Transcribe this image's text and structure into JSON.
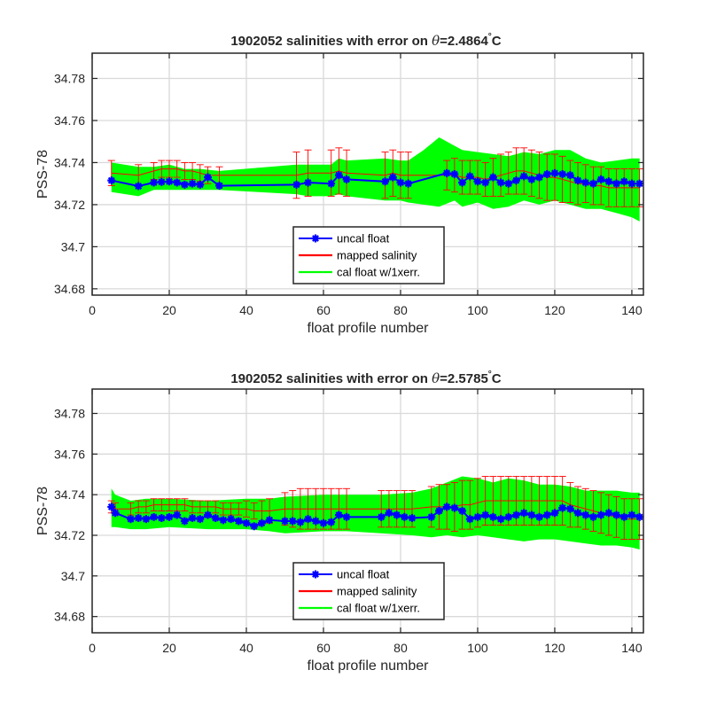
{
  "chart_data": [
    {
      "type": "line",
      "title": "1902052 salinities with error on",
      "title_symbol": "θ",
      "title_value": "=2.4864",
      "title_unit_deg": "°",
      "title_unit": "C",
      "xlabel": "float profile number",
      "ylabel": "PSS-78",
      "xlim": [
        0,
        143
      ],
      "ylim": [
        34.677,
        34.792
      ],
      "xticks": [
        0,
        20,
        40,
        60,
        80,
        100,
        120,
        140
      ],
      "yticks": [
        34.68,
        34.7,
        34.72,
        34.74,
        34.76,
        34.78
      ],
      "ytick_labels": [
        "34.68",
        "34.7",
        "34.72",
        "34.74",
        "34.76",
        "34.78"
      ],
      "grid": true,
      "legend_position": "bottom-center",
      "series": [
        {
          "name": "uncal float",
          "color": "#0000ff",
          "x": [
            5,
            12,
            16,
            18,
            20,
            22,
            24,
            26,
            28,
            30,
            33,
            53,
            56,
            62,
            64,
            66,
            76,
            78,
            80,
            82,
            92,
            94,
            96,
            98,
            100,
            102,
            104,
            106,
            108,
            110,
            112,
            114,
            116,
            118,
            120,
            122,
            124,
            126,
            128,
            130,
            132,
            134,
            136,
            138,
            140,
            142
          ],
          "y": [
            34.7315,
            34.7288,
            34.7305,
            34.7308,
            34.731,
            34.7305,
            34.7295,
            34.73,
            34.7295,
            34.733,
            34.729,
            34.7295,
            34.7305,
            34.73,
            34.734,
            34.732,
            34.731,
            34.733,
            34.7305,
            34.73,
            34.735,
            34.7345,
            34.7305,
            34.7335,
            34.731,
            34.7305,
            34.733,
            34.7305,
            34.73,
            34.7315,
            34.7335,
            34.732,
            34.733,
            34.7345,
            34.735,
            34.7345,
            34.734,
            34.7315,
            34.7305,
            34.73,
            34.732,
            34.731,
            34.73,
            34.731,
            34.73,
            34.73
          ]
        },
        {
          "name": "mapped salinity",
          "color": "#ff0000",
          "x": [
            5,
            12,
            16,
            18,
            20,
            22,
            24,
            26,
            28,
            30,
            33,
            53,
            56,
            62,
            64,
            66,
            76,
            78,
            80,
            82,
            92,
            94,
            96,
            98,
            100,
            102,
            104,
            106,
            108,
            110,
            112,
            114,
            116,
            118,
            120,
            122,
            124,
            126,
            128,
            130,
            132,
            134,
            136,
            138,
            140,
            142
          ],
          "y": [
            34.735,
            34.734,
            34.736,
            34.737,
            34.737,
            34.737,
            34.736,
            34.736,
            34.735,
            34.734,
            34.734,
            34.734,
            34.735,
            34.735,
            34.736,
            34.735,
            34.734,
            34.735,
            34.734,
            34.734,
            34.734,
            34.734,
            34.733,
            34.733,
            34.733,
            34.732,
            34.733,
            34.734,
            34.735,
            34.736,
            34.736,
            34.735,
            34.734,
            34.733,
            34.733,
            34.732,
            34.731,
            34.73,
            34.73,
            34.729,
            34.729,
            34.728,
            34.728,
            34.728,
            34.728,
            34.728
          ],
          "err": [
            0.006,
            0.005,
            0.004,
            0.004,
            0.004,
            0.004,
            0.004,
            0.004,
            0.004,
            0.004,
            0.004,
            0.011,
            0.011,
            0.011,
            0.011,
            0.011,
            0.011,
            0.011,
            0.011,
            0.011,
            0.007,
            0.008,
            0.008,
            0.008,
            0.008,
            0.008,
            0.009,
            0.01,
            0.01,
            0.011,
            0.011,
            0.011,
            0.011,
            0.011,
            0.011,
            0.011,
            0.01,
            0.01,
            0.009,
            0.009,
            0.009,
            0.009,
            0.009,
            0.009,
            0.009,
            0.009
          ]
        },
        {
          "name": "cal float w/1xerr.",
          "color": "#00ff00",
          "x": [
            5,
            12,
            16,
            20,
            24,
            28,
            33,
            53,
            56,
            62,
            64,
            66,
            76,
            80,
            82,
            86,
            90,
            94,
            96,
            100,
            104,
            108,
            112,
            116,
            120,
            124,
            128,
            132,
            136,
            140,
            142
          ],
          "upper": [
            34.74,
            34.738,
            34.738,
            34.739,
            34.737,
            34.737,
            34.736,
            34.739,
            34.739,
            34.739,
            34.742,
            34.741,
            34.742,
            34.741,
            34.741,
            34.746,
            34.752,
            34.748,
            34.746,
            34.745,
            34.744,
            34.743,
            34.745,
            34.744,
            34.746,
            34.746,
            34.742,
            34.74,
            34.741,
            34.742,
            34.742
          ],
          "lower": [
            34.726,
            34.724,
            34.727,
            34.727,
            34.727,
            34.727,
            34.727,
            34.725,
            34.724,
            34.724,
            34.725,
            34.724,
            34.722,
            34.722,
            34.721,
            34.72,
            34.719,
            34.722,
            34.719,
            34.721,
            34.718,
            34.719,
            34.722,
            34.72,
            34.722,
            34.72,
            34.718,
            34.718,
            34.716,
            34.714,
            34.712
          ]
        }
      ]
    },
    {
      "type": "line",
      "title": "1902052 salinities with error on",
      "title_symbol": "θ",
      "title_value": "=2.5785",
      "title_unit_deg": "°",
      "title_unit": "C",
      "xlabel": "float profile number",
      "ylabel": "PSS-78",
      "xlim": [
        0,
        143
      ],
      "ylim": [
        34.672,
        34.792
      ],
      "xticks": [
        0,
        20,
        40,
        60,
        80,
        100,
        120,
        140
      ],
      "yticks": [
        34.68,
        34.7,
        34.72,
        34.74,
        34.76,
        34.78
      ],
      "ytick_labels": [
        "34.68",
        "34.7",
        "34.72",
        "34.74",
        "34.76",
        "34.78"
      ],
      "grid": true,
      "legend_position": "bottom-center",
      "series": [
        {
          "name": "uncal float",
          "color": "#0000ff",
          "x": [
            5,
            6,
            10,
            12,
            14,
            16,
            18,
            20,
            22,
            24,
            26,
            28,
            30,
            32,
            34,
            36,
            38,
            40,
            42,
            44,
            46,
            50,
            52,
            54,
            56,
            58,
            60,
            62,
            64,
            66,
            75,
            77,
            79,
            81,
            83,
            88,
            90,
            92,
            94,
            96,
            98,
            100,
            102,
            104,
            106,
            108,
            110,
            112,
            114,
            116,
            118,
            120,
            122,
            124,
            126,
            128,
            130,
            132,
            134,
            136,
            138,
            140,
            142
          ],
          "y": [
            34.734,
            34.731,
            34.728,
            34.7285,
            34.728,
            34.729,
            34.7285,
            34.729,
            34.73,
            34.727,
            34.7285,
            34.728,
            34.73,
            34.7285,
            34.7275,
            34.728,
            34.727,
            34.726,
            34.7245,
            34.726,
            34.7275,
            34.727,
            34.727,
            34.7265,
            34.728,
            34.727,
            34.726,
            34.7265,
            34.73,
            34.729,
            34.729,
            34.731,
            34.73,
            34.729,
            34.7285,
            34.729,
            34.732,
            34.734,
            34.7335,
            34.732,
            34.728,
            34.729,
            34.73,
            34.729,
            34.728,
            34.729,
            34.73,
            34.731,
            34.73,
            34.729,
            34.73,
            34.731,
            34.7335,
            34.733,
            34.731,
            34.73,
            34.729,
            34.73,
            34.731,
            34.73,
            34.729,
            34.73,
            34.729
          ]
        },
        {
          "name": "mapped salinity",
          "color": "#ff0000",
          "x": [
            5,
            6,
            10,
            12,
            14,
            16,
            18,
            20,
            22,
            24,
            26,
            28,
            30,
            32,
            34,
            36,
            38,
            40,
            42,
            44,
            46,
            50,
            52,
            54,
            56,
            58,
            60,
            62,
            64,
            66,
            75,
            77,
            79,
            81,
            83,
            88,
            90,
            92,
            94,
            96,
            98,
            100,
            102,
            104,
            106,
            108,
            110,
            112,
            114,
            116,
            118,
            120,
            122,
            124,
            126,
            128,
            130,
            132,
            134,
            136,
            138,
            140,
            142
          ],
          "y": [
            34.734,
            34.733,
            34.733,
            34.734,
            34.734,
            34.735,
            34.735,
            34.735,
            34.735,
            34.735,
            34.734,
            34.734,
            34.734,
            34.734,
            34.733,
            34.733,
            34.733,
            34.733,
            34.732,
            34.732,
            34.732,
            34.733,
            34.733,
            34.733,
            34.733,
            34.733,
            34.733,
            34.733,
            34.733,
            34.733,
            34.733,
            34.733,
            34.733,
            34.733,
            34.733,
            34.734,
            34.734,
            34.734,
            34.734,
            34.735,
            34.735,
            34.736,
            34.737,
            34.737,
            34.737,
            34.737,
            34.737,
            34.737,
            34.737,
            34.737,
            34.737,
            34.737,
            34.737,
            34.735,
            34.734,
            34.733,
            34.732,
            34.731,
            34.73,
            34.729,
            34.728,
            34.728,
            34.728
          ],
          "err": [
            0.003,
            0.003,
            0.003,
            0.003,
            0.003,
            0.003,
            0.003,
            0.003,
            0.003,
            0.003,
            0.003,
            0.003,
            0.003,
            0.003,
            0.003,
            0.003,
            0.003,
            0.004,
            0.004,
            0.005,
            0.006,
            0.008,
            0.009,
            0.01,
            0.01,
            0.01,
            0.01,
            0.01,
            0.01,
            0.01,
            0.009,
            0.009,
            0.009,
            0.009,
            0.009,
            0.01,
            0.011,
            0.011,
            0.012,
            0.012,
            0.012,
            0.012,
            0.012,
            0.012,
            0.012,
            0.012,
            0.012,
            0.012,
            0.012,
            0.012,
            0.012,
            0.012,
            0.012,
            0.011,
            0.01,
            0.01,
            0.01,
            0.01,
            0.01,
            0.01,
            0.01,
            0.01,
            0.01
          ]
        },
        {
          "name": "cal float w/1xerr.",
          "color": "#00ff00",
          "x": [
            5,
            6,
            10,
            14,
            20,
            30,
            40,
            46,
            50,
            60,
            66,
            75,
            83,
            88,
            92,
            96,
            100,
            104,
            108,
            112,
            116,
            120,
            124,
            128,
            132,
            136,
            140,
            142
          ],
          "upper": [
            34.743,
            34.74,
            34.737,
            34.738,
            34.738,
            34.737,
            34.738,
            34.738,
            34.739,
            34.74,
            34.74,
            34.74,
            34.741,
            34.743,
            34.746,
            34.749,
            34.748,
            34.746,
            34.748,
            34.747,
            34.745,
            34.745,
            34.744,
            34.742,
            34.742,
            34.742,
            34.741,
            34.741
          ],
          "lower": [
            34.724,
            34.724,
            34.723,
            34.723,
            34.724,
            34.723,
            34.723,
            34.722,
            34.721,
            34.722,
            34.722,
            34.721,
            34.72,
            34.719,
            34.72,
            34.719,
            34.72,
            34.719,
            34.718,
            34.717,
            34.718,
            34.718,
            34.717,
            34.716,
            34.715,
            34.715,
            34.714,
            34.713
          ]
        }
      ]
    }
  ]
}
